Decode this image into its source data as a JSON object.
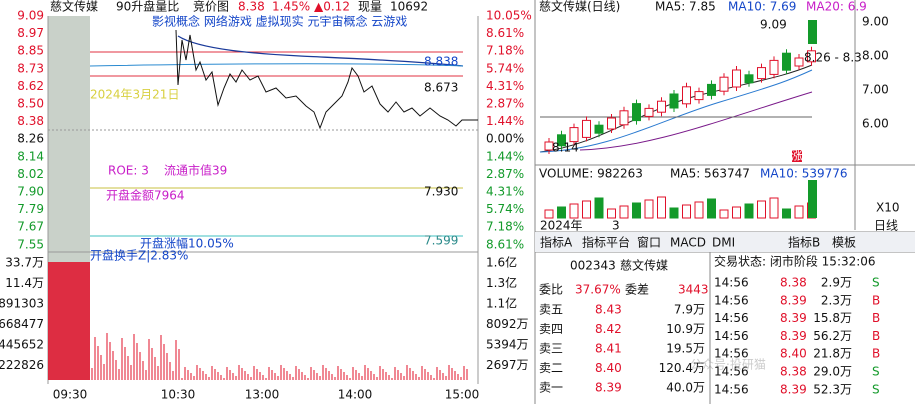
{
  "intraday": {
    "header": {
      "name": "慈文传媒",
      "mode": "90升盘量比",
      "view": "竞价图",
      "price": "8.38",
      "pct": "1.45%",
      "change": "▲0.12",
      "vol_label": "现量",
      "vol": "10692"
    },
    "price_ticks": [
      "9.09",
      "8.97",
      "8.85",
      "8.73",
      "8.62",
      "8.50",
      "8.38",
      "8.26",
      "8.14",
      "8.02",
      "7.90",
      "7.79",
      "7.67",
      "7.55"
    ],
    "pct_ticks": [
      "10.05%",
      "8.61%",
      "7.18%",
      "5.74%",
      "4.31%",
      "2.87%",
      "1.44%",
      "0.00%",
      "1.44%",
      "2.87%",
      "4.31%",
      "5.74%",
      "7.18%",
      "8.61%"
    ],
    "tags": "影视概念 网络游戏 虚拟现实 元宇宙概念 云游戏",
    "line_value": "8.838",
    "last_value": "8.673",
    "date": "2024年3月21日",
    "roe": "ROE: 3",
    "float_cap": "流通市值39",
    "open_amount": "开盘金额7964",
    "open_amount_value": "7.930",
    "low_value": "7.599",
    "open_rise": "开盘涨幅10.05%",
    "open_turnover": "开盘换手Z|2.83%",
    "vol_ticks_left": [
      "33.7万",
      "11.4万",
      "891303",
      "668477",
      "445652",
      "222826"
    ],
    "vol_ticks_right": [
      "1.6亿",
      "1.3亿",
      "1.1亿",
      "8092万",
      "5394万",
      "2697万"
    ],
    "times": [
      "09:30",
      "10:30",
      "13:00",
      "14:00",
      "15:00"
    ]
  },
  "daily": {
    "title": "慈文传媒(日线)",
    "ma5": "MA5: 7.85",
    "ma10": "MA10: 7.69",
    "ma20": "MA20: 6.9",
    "high": "9.09",
    "range": "8.26 - 8.3",
    "low": "8.14",
    "ticks": [
      "9.00",
      "8.00",
      "7.00",
      "6.00"
    ],
    "limit": "涨",
    "volume": "VOLUME: 982263",
    "vma5": "MA5: 563747",
    "vma10": "MA10: 539776",
    "zoom": "X10",
    "year": "2024年",
    "month": "3",
    "period": "日线"
  },
  "tabs": [
    "指标A",
    "指标平台",
    "窗口",
    "MACD",
    "DMI",
    "指标B",
    "模板"
  ],
  "quote": {
    "code": "002343",
    "name": "慈文传媒",
    "ratio_label": "委比",
    "ratio": "37.67%",
    "diff_label": "委差",
    "diff": "3443",
    "asks": [
      [
        "卖五",
        "8.43",
        "7.9万"
      ],
      [
        "卖四",
        "8.42",
        "10.9万"
      ],
      [
        "卖三",
        "8.41",
        "19.5万"
      ],
      [
        "卖二",
        "8.40",
        "120.4万"
      ],
      [
        "卖一",
        "8.39",
        "40.0万"
      ]
    ]
  },
  "trades": {
    "status": "交易状态: 闭市阶段 15:32:06",
    "rows": [
      [
        "14:56",
        "8.38",
        "2.9万",
        "S"
      ],
      [
        "14:56",
        "8.39",
        "2.3万",
        "B"
      ],
      [
        "14:56",
        "8.39",
        "15.8万",
        "B"
      ],
      [
        "14:56",
        "8.39",
        "56.2万",
        "B"
      ],
      [
        "14:56",
        "8.40",
        "21.8万",
        "B"
      ],
      [
        "14:56",
        "8.38",
        "29.0万",
        "S"
      ],
      [
        "14:56",
        "8.39",
        "52.3万",
        "S"
      ]
    ]
  },
  "watermark": "公众号·投研猫"
}
